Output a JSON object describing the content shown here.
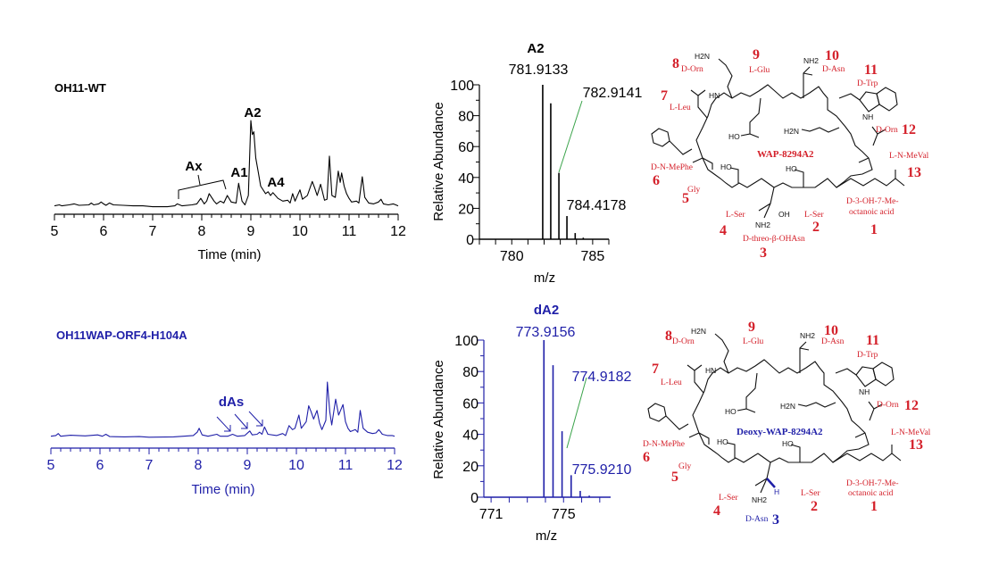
{
  "colors": {
    "wt": "#000000",
    "mutant": "#1f1fa8",
    "residue_red": "#d4202a",
    "leader_green": "#3aa34a"
  },
  "chart_data": [
    {
      "type": "line",
      "title": "OH11-WT",
      "xlabel": "Time (min)",
      "xlim": [
        5,
        12
      ],
      "xticks": [
        5,
        6,
        7,
        8,
        9,
        10,
        11,
        12
      ],
      "ylim": [
        0,
        100
      ],
      "annotations": [
        "A2",
        "A1",
        "A4",
        "Ax"
      ],
      "points": [
        [
          5.0,
          9
        ],
        [
          5.1,
          10
        ],
        [
          5.15,
          9
        ],
        [
          5.3,
          10
        ],
        [
          5.4,
          11
        ],
        [
          5.5,
          9.5
        ],
        [
          5.7,
          10
        ],
        [
          5.75,
          12
        ],
        [
          5.8,
          10
        ],
        [
          5.9,
          11
        ],
        [
          5.95,
          13
        ],
        [
          6.0,
          11
        ],
        [
          6.05,
          9.5
        ],
        [
          6.12,
          12
        ],
        [
          6.2,
          10
        ],
        [
          6.4,
          9.5
        ],
        [
          6.6,
          9
        ],
        [
          6.8,
          9
        ],
        [
          7.0,
          8
        ],
        [
          7.3,
          8
        ],
        [
          7.45,
          9
        ],
        [
          7.5,
          11
        ],
        [
          7.6,
          9
        ],
        [
          7.8,
          10
        ],
        [
          7.9,
          11
        ],
        [
          7.98,
          17
        ],
        [
          8.05,
          11
        ],
        [
          8.1,
          14
        ],
        [
          8.15,
          22
        ],
        [
          8.25,
          14
        ],
        [
          8.3,
          11
        ],
        [
          8.38,
          14
        ],
        [
          8.45,
          12
        ],
        [
          8.52,
          20
        ],
        [
          8.6,
          13
        ],
        [
          8.7,
          12
        ],
        [
          8.75,
          33
        ],
        [
          8.82,
          14
        ],
        [
          8.88,
          10
        ],
        [
          8.95,
          20
        ],
        [
          9.0,
          100
        ],
        [
          9.03,
          85
        ],
        [
          9.06,
          88
        ],
        [
          9.1,
          60
        ],
        [
          9.15,
          45
        ],
        [
          9.2,
          30
        ],
        [
          9.3,
          22
        ],
        [
          9.35,
          24
        ],
        [
          9.4,
          20
        ],
        [
          9.45,
          23
        ],
        [
          9.55,
          17
        ],
        [
          9.65,
          14
        ],
        [
          9.75,
          15
        ],
        [
          9.8,
          12
        ],
        [
          9.85,
          22
        ],
        [
          9.9,
          14
        ],
        [
          10.0,
          26
        ],
        [
          10.05,
          16
        ],
        [
          10.15,
          20
        ],
        [
          10.25,
          35
        ],
        [
          10.3,
          28
        ],
        [
          10.35,
          20
        ],
        [
          10.42,
          32
        ],
        [
          10.5,
          15
        ],
        [
          10.55,
          16
        ],
        [
          10.6,
          62
        ],
        [
          10.65,
          20
        ],
        [
          10.72,
          18
        ],
        [
          10.78,
          46
        ],
        [
          10.82,
          34
        ],
        [
          10.85,
          44
        ],
        [
          10.9,
          30
        ],
        [
          10.95,
          22
        ],
        [
          11.0,
          17
        ],
        [
          11.05,
          13
        ],
        [
          11.15,
          14
        ],
        [
          11.2,
          12
        ],
        [
          11.27,
          40
        ],
        [
          11.32,
          18
        ],
        [
          11.4,
          12
        ],
        [
          11.5,
          11
        ],
        [
          11.6,
          13
        ],
        [
          11.65,
          16
        ],
        [
          11.7,
          11
        ],
        [
          11.8,
          10
        ],
        [
          11.9,
          11
        ],
        [
          12.0,
          9
        ]
      ]
    },
    {
      "type": "line",
      "title": "OH11WAP-ORF4-H104A",
      "xlabel": "Time (min)",
      "xlim": [
        5,
        12
      ],
      "xticks": [
        5,
        6,
        7,
        8,
        9,
        10,
        11,
        12
      ],
      "ylim": [
        0,
        100
      ],
      "annotations": [
        "dAs"
      ],
      "points": [
        [
          5.0,
          18
        ],
        [
          5.1,
          19
        ],
        [
          5.15,
          22
        ],
        [
          5.2,
          18
        ],
        [
          5.4,
          19.5
        ],
        [
          5.7,
          18.5
        ],
        [
          5.95,
          20
        ],
        [
          6.05,
          18
        ],
        [
          6.12,
          21
        ],
        [
          6.2,
          17.5
        ],
        [
          6.5,
          17
        ],
        [
          6.8,
          17.5
        ],
        [
          7.0,
          16.5
        ],
        [
          7.5,
          17
        ],
        [
          7.7,
          18
        ],
        [
          7.9,
          19
        ],
        [
          7.98,
          24
        ],
        [
          8.02,
          30
        ],
        [
          8.08,
          20
        ],
        [
          8.2,
          18
        ],
        [
          8.38,
          21
        ],
        [
          8.45,
          18
        ],
        [
          8.6,
          18
        ],
        [
          8.7,
          21
        ],
        [
          8.8,
          18
        ],
        [
          8.95,
          19
        ],
        [
          9.05,
          26
        ],
        [
          9.1,
          20
        ],
        [
          9.2,
          21
        ],
        [
          9.25,
          24
        ],
        [
          9.3,
          21
        ],
        [
          9.35,
          32
        ],
        [
          9.42,
          21
        ],
        [
          9.6,
          19
        ],
        [
          9.72,
          22
        ],
        [
          9.78,
          19
        ],
        [
          9.85,
          34
        ],
        [
          9.92,
          28
        ],
        [
          9.97,
          30
        ],
        [
          10.05,
          50
        ],
        [
          10.1,
          30
        ],
        [
          10.2,
          40
        ],
        [
          10.25,
          64
        ],
        [
          10.3,
          55
        ],
        [
          10.35,
          44
        ],
        [
          10.42,
          57
        ],
        [
          10.47,
          38
        ],
        [
          10.52,
          28
        ],
        [
          10.6,
          42
        ],
        [
          10.63,
          100
        ],
        [
          10.68,
          55
        ],
        [
          10.72,
          35
        ],
        [
          10.8,
          74
        ],
        [
          10.86,
          50
        ],
        [
          10.95,
          66
        ],
        [
          11.0,
          40
        ],
        [
          11.05,
          30
        ],
        [
          11.1,
          25
        ],
        [
          11.2,
          28
        ],
        [
          11.25,
          24
        ],
        [
          11.3,
          57
        ],
        [
          11.36,
          30
        ],
        [
          11.45,
          24
        ],
        [
          11.55,
          22
        ],
        [
          11.62,
          23
        ],
        [
          11.68,
          28
        ],
        [
          11.75,
          21
        ],
        [
          11.85,
          19
        ],
        [
          11.95,
          19
        ],
        [
          12.0,
          18
        ]
      ]
    },
    {
      "type": "bar",
      "title": "A2",
      "xlabel": "m/z",
      "ylabel": "Relative Abundance",
      "xlim": [
        778,
        786
      ],
      "xticks": [
        780,
        785
      ],
      "ylim": [
        0,
        100
      ],
      "yticks": [
        0,
        20,
        40,
        60,
        80,
        100
      ],
      "peaks": [
        {
          "mz": 781.9133,
          "rel": 100
        },
        {
          "mz": 782.41,
          "rel": 88
        },
        {
          "mz": 782.9141,
          "rel": 43
        },
        {
          "mz": 783.41,
          "rel": 15
        },
        {
          "mz": 783.92,
          "rel": 4
        },
        {
          "mz": 784.42,
          "rel": 1
        }
      ],
      "peak_labels": [
        "781.9133",
        "782.9141",
        "784.4178"
      ]
    },
    {
      "type": "bar",
      "title": "dA2",
      "xlabel": "m/z",
      "ylabel": "Relative Abundance",
      "xlim": [
        770.6,
        777.6
      ],
      "xticks": [
        771,
        775
      ],
      "ylim": [
        0,
        100
      ],
      "yticks": [
        0,
        20,
        40,
        60,
        80,
        100
      ],
      "peaks": [
        {
          "mz": 773.9156,
          "rel": 100
        },
        {
          "mz": 774.42,
          "rel": 84
        },
        {
          "mz": 774.9182,
          "rel": 42
        },
        {
          "mz": 775.42,
          "rel": 14
        },
        {
          "mz": 775.921,
          "rel": 4
        },
        {
          "mz": 776.42,
          "rel": 1
        }
      ],
      "peak_labels": [
        "773.9156",
        "774.9182",
        "775.9210"
      ]
    }
  ],
  "structures": {
    "top": {
      "name": "WAP-8294A2",
      "residues": [
        {
          "num": "1",
          "label": "D-3-OH-7-Me-",
          "label2": "octanoic acid"
        },
        {
          "num": "2",
          "label": "L-Ser"
        },
        {
          "num": "3",
          "label": "D-threo-β-OHAsn"
        },
        {
          "num": "4",
          "label": "L-Ser"
        },
        {
          "num": "5",
          "label": "Gly"
        },
        {
          "num": "6",
          "label": "D-N-MePhe"
        },
        {
          "num": "7",
          "label": "L-Leu"
        },
        {
          "num": "8",
          "label": "D-Orn"
        },
        {
          "num": "9",
          "label": "L-Glu"
        },
        {
          "num": "10",
          "label": "D-Asn"
        },
        {
          "num": "11",
          "label": "D-Trp"
        },
        {
          "num": "12",
          "label": "D-Orn"
        },
        {
          "num": "13",
          "label": "L-N-MeVal"
        }
      ]
    },
    "bottom": {
      "name": "Deoxy-WAP-8294A2",
      "residues": [
        {
          "num": "1",
          "label": "D-3-OH-7-Me-",
          "label2": "octanoic acid"
        },
        {
          "num": "2",
          "label": "L-Ser"
        },
        {
          "num": "3",
          "label": "D-Asn"
        },
        {
          "num": "4",
          "label": "L-Ser"
        },
        {
          "num": "5",
          "label": "Gly"
        },
        {
          "num": "6",
          "label": "D-N-MePhe"
        },
        {
          "num": "7",
          "label": "L-Leu"
        },
        {
          "num": "8",
          "label": "D-Orn"
        },
        {
          "num": "9",
          "label": "L-Glu"
        },
        {
          "num": "10",
          "label": "D-Asn"
        },
        {
          "num": "11",
          "label": "D-Trp"
        },
        {
          "num": "12",
          "label": "D-Orn"
        },
        {
          "num": "13",
          "label": "L-N-MeVal"
        }
      ]
    },
    "atoms": {
      "h2n": "H2N",
      "nh2": "NH2",
      "ho": "HO",
      "oh": "OH",
      "nh": "NH",
      "hn": "HN",
      "n": "N",
      "o": "O",
      "h": "H"
    }
  }
}
